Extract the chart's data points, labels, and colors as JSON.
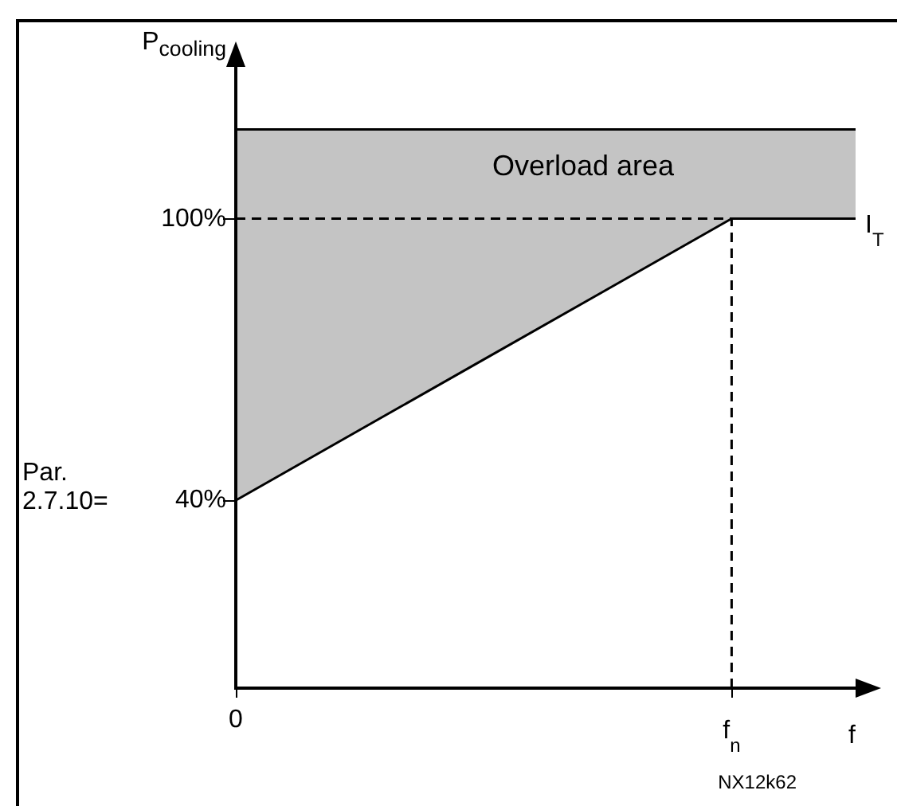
{
  "chart_data": {
    "type": "line",
    "xlabel": "f",
    "ylabel": "P$_{cooling}$",
    "categories": [
      "0",
      null,
      null,
      null,
      "f$_{n}$",
      null
    ],
    "ylim": [
      0,
      133
    ],
    "yticks": [
      {
        "value": 40,
        "label": "40%"
      },
      {
        "value": 100,
        "label": "100%"
      }
    ],
    "series": [
      {
        "type": "line",
        "color": "#000000",
        "values": [
          119,
          119,
          119,
          119,
          119,
          119
        ],
        "lower": [
          40,
          55,
          70,
          85,
          100,
          100
        ],
        "upper": [
          119,
          119,
          119,
          119,
          119,
          119
        ]
      },
      {
        "type": "line",
        "color": "#000000",
        "values": [
          100,
          100,
          100,
          100,
          100,
          null
        ],
        "line_style": "dashed"
      },
      {
        "type": "line",
        "color": "#000000",
        "x": [
          "f$_{n}$",
          "f$_{n}$"
        ],
        "values": [
          0,
          100
        ],
        "line_style": "dashed"
      },
      {
        "name": "I$_{T}$",
        "color": "#000000",
        "values": [
          40,
          55,
          70,
          85,
          100,
          100
        ]
      }
    ],
    "annotations": [
      "Overload area",
      "Par.\n2.7.10=",
      "NX12k62"
    ],
    "marker": "none",
    "line_style": "solid"
  }
}
